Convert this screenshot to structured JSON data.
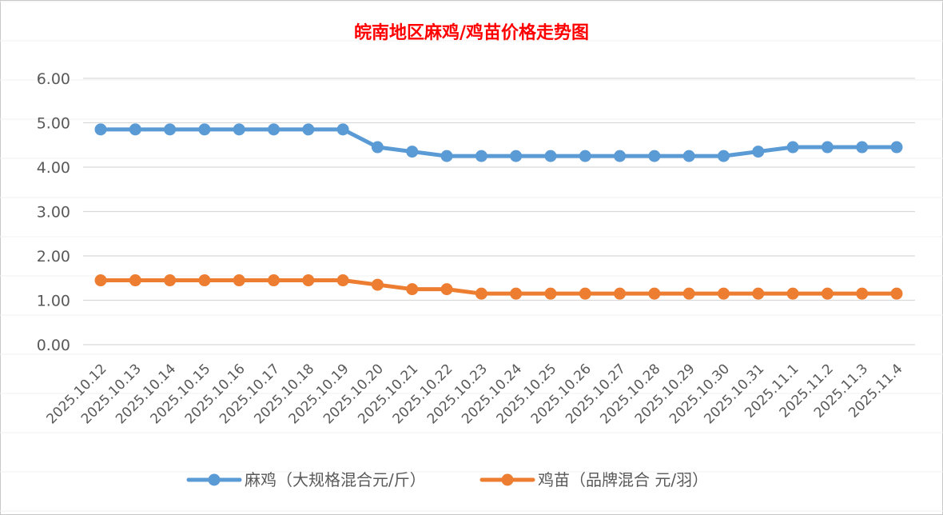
{
  "chart_data": {
    "type": "line",
    "title": "皖南地区麻鸡/鸡苗价格走势图",
    "xlabel": "",
    "ylabel": "",
    "ylim": [
      0,
      6
    ],
    "yticks": [
      "0.00",
      "1.00",
      "2.00",
      "3.00",
      "4.00",
      "5.00",
      "6.00"
    ],
    "grid": true,
    "legend_position": "bottom",
    "categories": [
      "2025.10.12",
      "2025.10.13",
      "2025.10.14",
      "2025.10.15",
      "2025.10.16",
      "2025.10.17",
      "2025.10.18",
      "2025.10.19",
      "2025.10.20",
      "2025.10.21",
      "2025.10.22",
      "2025.10.23",
      "2025.10.24",
      "2025.10.25",
      "2025.10.26",
      "2025.10.27",
      "2025.10.28",
      "2025.10.29",
      "2025.10.30",
      "2025.10.31",
      "2025.11.1",
      "2025.11.2",
      "2025.11.3",
      "2025.11.4"
    ],
    "series": [
      {
        "name": "麻鸡（大规格混合元/斤）",
        "color": "#5b9bd5",
        "values": [
          4.85,
          4.85,
          4.85,
          4.85,
          4.85,
          4.85,
          4.85,
          4.85,
          4.45,
          4.35,
          4.25,
          4.25,
          4.25,
          4.25,
          4.25,
          4.25,
          4.25,
          4.25,
          4.25,
          4.35,
          4.45,
          4.45,
          4.45,
          4.45
        ]
      },
      {
        "name": "鸡苗（品牌混合 元/羽）",
        "color": "#ed7d31",
        "values": [
          1.45,
          1.45,
          1.45,
          1.45,
          1.45,
          1.45,
          1.45,
          1.45,
          1.35,
          1.25,
          1.25,
          1.15,
          1.15,
          1.15,
          1.15,
          1.15,
          1.15,
          1.15,
          1.15,
          1.15,
          1.15,
          1.15,
          1.15,
          1.15
        ]
      }
    ]
  }
}
